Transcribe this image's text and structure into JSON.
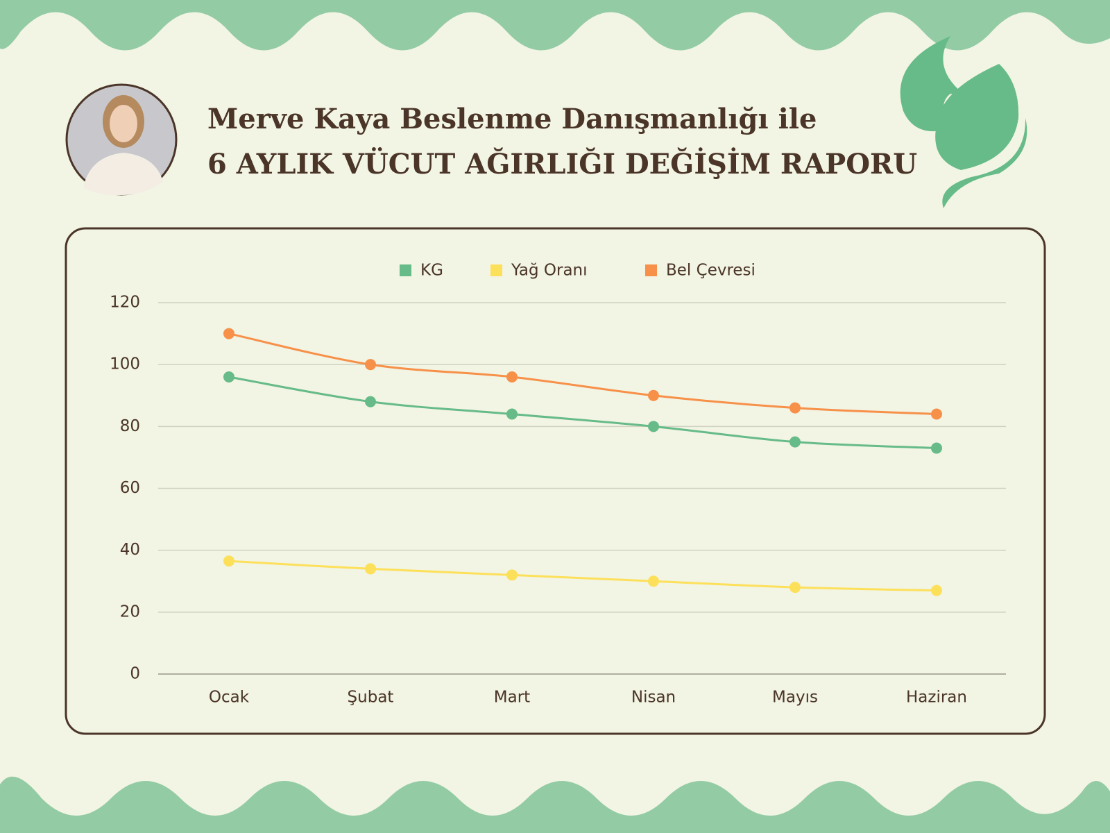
{
  "chart_data": {
    "type": "line",
    "title": "Merve Kaya Beslenme Danışmanlığı ile",
    "subtitle": "6 AYLIK VÜCUT AĞIRLIĞI DEĞİŞİM RAPORU",
    "categories": [
      "Ocak",
      "Şubat",
      "Mart",
      "Nisan",
      "Mayıs",
      "Haziran"
    ],
    "series": [
      {
        "name": "KG",
        "color": "#66bb88",
        "values": [
          96,
          88,
          84,
          80,
          75,
          73
        ]
      },
      {
        "name": "Yağ Oranı",
        "color": "#fde05a",
        "values": [
          36.5,
          34,
          32,
          30,
          28,
          27
        ]
      },
      {
        "name": "Bel Çevresi",
        "color": "#f79048",
        "values": [
          110,
          100,
          96,
          90,
          86,
          84
        ]
      }
    ],
    "ylim": [
      0,
      120
    ],
    "yticks": [
      0,
      20,
      40,
      60,
      80,
      100,
      120
    ],
    "grid": true
  }
}
